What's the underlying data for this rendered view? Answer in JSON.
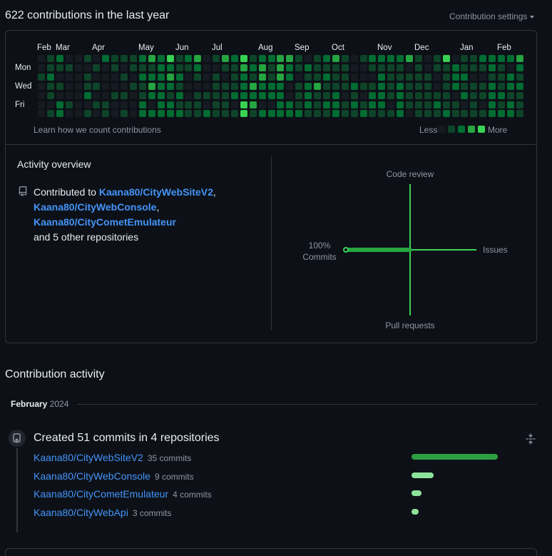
{
  "header": {
    "title": "622 contributions in the last year",
    "settings_label": "Contribution settings"
  },
  "calendar": {
    "months": [
      {
        "label": "Feb",
        "col": 0
      },
      {
        "label": "Mar",
        "col": 2
      },
      {
        "label": "Apr",
        "col": 6
      },
      {
        "label": "May",
        "col": 11
      },
      {
        "label": "Jun",
        "col": 15
      },
      {
        "label": "Jul",
        "col": 19
      },
      {
        "label": "Aug",
        "col": 24
      },
      {
        "label": "Sep",
        "col": 28
      },
      {
        "label": "Oct",
        "col": 32
      },
      {
        "label": "Nov",
        "col": 37
      },
      {
        "label": "Dec",
        "col": 41
      },
      {
        "label": "Jan",
        "col": 46
      },
      {
        "label": "Feb",
        "col": 50
      }
    ],
    "days": [
      {
        "label": "Mon",
        "row": 1
      },
      {
        "label": "Wed",
        "row": 3
      },
      {
        "label": "Fri",
        "row": 5
      }
    ],
    "weeks": [
      "0010000",
      "1121101",
      "2101022",
      "0100010",
      "0000000",
      "1011201",
      "0101010",
      "2000011",
      "1100100",
      "1010101",
      "1101000",
      "2121122",
      "3123202",
      "2222222",
      "4232122",
      "1121212",
      "2100011",
      "3210111",
      "0000102",
      "1011111",
      "3101111",
      "2111201",
      "4322244",
      "1213231",
      "2332202",
      "2112202",
      "3332222",
      "3220022",
      "1101112",
      "0212221",
      "1113111",
      "2121121",
      "3111222",
      "1111011",
      "0002121",
      "1001012",
      "2101221",
      "2122221",
      "2111101",
      "2112222",
      "3011110",
      "1111111",
      "0011111",
      "1100121",
      "4111112",
      "0222011",
      "1121201",
      "1101111",
      "2101101",
      "2212222",
      "2111212",
      "2022122",
      "3212111"
    ],
    "footer_link": "Learn how we count contributions",
    "legend_less": "Less",
    "legend_more": "More"
  },
  "overview": {
    "title": "Activity overview",
    "contributed_to": "Contributed to",
    "repos": [
      "Kaana80/CityWebSiteV2",
      "Kaana80/CityWebConsole",
      "Kaana80/CityCometEmulateur"
    ],
    "others": "and 5 other repositories",
    "radar": {
      "code_review": "Code review",
      "issues": "Issues",
      "pull_requests": "Pull requests",
      "commits_pct": "100%",
      "commits": "Commits"
    }
  },
  "activity": {
    "title": "Contribution activity",
    "month": "February",
    "year": "2024",
    "commit_summary": "Created 51 commits in 4 repositories",
    "repos": [
      {
        "name": "Kaana80/CityWebSiteV2",
        "count": "35 commits",
        "commits": 35
      },
      {
        "name": "Kaana80/CityWebConsole",
        "count": "9 commits",
        "commits": 9
      },
      {
        "name": "Kaana80/CityCometEmulateur",
        "count": "4 commits",
        "commits": 4
      },
      {
        "name": "Kaana80/CityWebApi",
        "count": "3 commits",
        "commits": 3
      }
    ]
  },
  "colors": {
    "level0": "#161b22",
    "level1": "#0e4429",
    "level2": "#006d32",
    "level3": "#26a641",
    "level4": "#39d353",
    "link": "#4493f8",
    "bar_main": "#2ea043",
    "bar_light": "#8ee39b"
  }
}
